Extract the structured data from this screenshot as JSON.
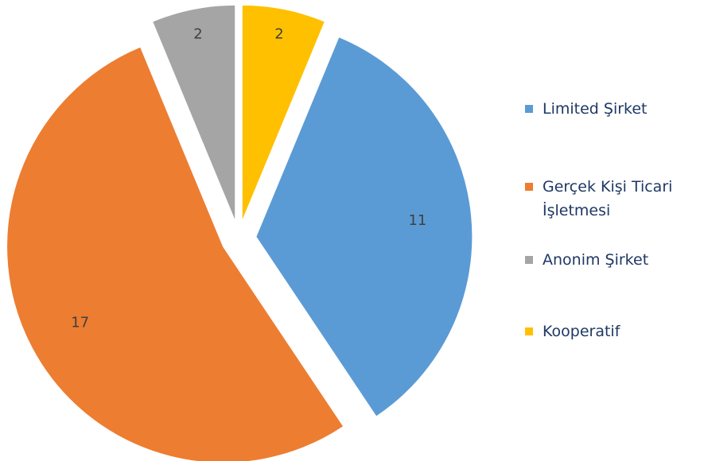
{
  "chart_data": {
    "type": "pie",
    "categories": [
      "Limited Şirket",
      "Gerçek Kişi Ticari İşletmesi",
      "Anonim Şirket",
      "Kooperatif"
    ],
    "values": [
      11,
      17,
      2,
      2
    ],
    "colors": [
      "#5b9bd5",
      "#ed7d31",
      "#a5a5a5",
      "#ffc000"
    ],
    "legend": "right"
  }
}
